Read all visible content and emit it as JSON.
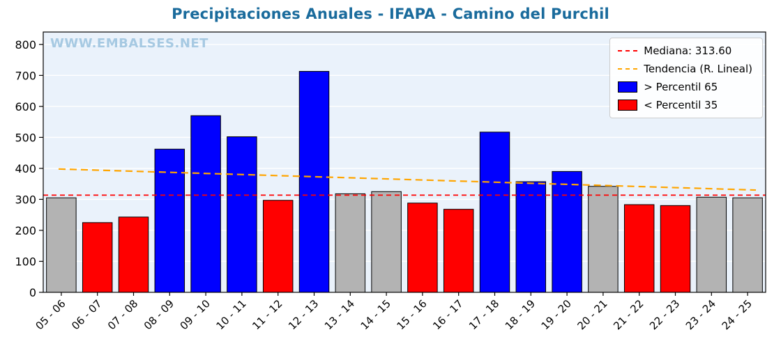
{
  "title": "Precipitaciones Anuales - IFAPA - Camino del Purchil",
  "watermark": "WWW.EMBALSES.NET",
  "colors": {
    "blue": "#0000ff",
    "red": "#ff0000",
    "gray": "#b3b3b3",
    "median": "#ff0000",
    "trend": "#ffa500",
    "plot_bg": "#eaf2fb",
    "grid": "#ffffff",
    "title": "#1a6b9c",
    "watermark": "#a6c9e2",
    "axis": "#000000"
  },
  "chart_data": {
    "type": "bar",
    "title": "Precipitaciones Anuales - IFAPA - Camino del Purchil",
    "xlabel": "",
    "ylabel": "",
    "categories": [
      "05 - 06",
      "06 - 07",
      "07 - 08",
      "08 - 09",
      "09 - 10",
      "10 - 11",
      "11 - 12",
      "12 - 13",
      "13 - 14",
      "14 - 15",
      "15 - 16",
      "16 - 17",
      "17 - 18",
      "18 - 19",
      "19 - 20",
      "20 - 21",
      "21 - 22",
      "22 - 23",
      "23 - 24",
      "24 - 25"
    ],
    "values": [
      305,
      225,
      243,
      462,
      570,
      502,
      297,
      713,
      318,
      325,
      288,
      268,
      517,
      357,
      390,
      342,
      283,
      280,
      307,
      305
    ],
    "bar_colors": [
      "gray",
      "red",
      "red",
      "blue",
      "blue",
      "blue",
      "red",
      "blue",
      "gray",
      "gray",
      "red",
      "red",
      "blue",
      "blue",
      "blue",
      "gray",
      "red",
      "red",
      "gray",
      "gray"
    ],
    "median": 313.6,
    "trend": [
      398,
      330
    ],
    "ylim": [
      0,
      840
    ],
    "yticks": [
      0,
      100,
      200,
      300,
      400,
      500,
      600,
      700,
      800
    ],
    "grid": true,
    "legend_position": "upper right",
    "legend": [
      "Mediana: 313.60",
      "Tendencia (R. Lineal)",
      "> Percentil 65",
      "< Percentil 35"
    ]
  }
}
